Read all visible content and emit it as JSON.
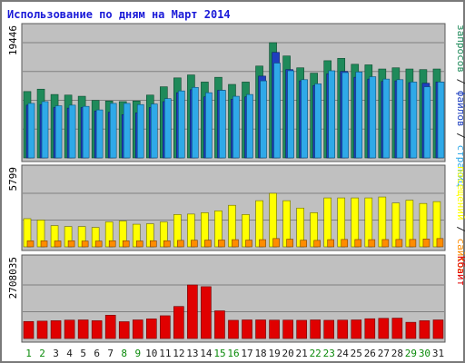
{
  "title": "Использование по дням на Март 2014",
  "colors": {
    "frame_border": "#7a7a7a",
    "panel_bg": "#c0c0c0",
    "gridline": "#808080",
    "title": "#1a1ad8",
    "requests": "#1f8a5a",
    "files": "#1e3fbf",
    "pages": "#2fa9e8",
    "sites": "#ff8c00",
    "visits": "#ffff00",
    "kbytes": "#e00000",
    "weekend_label": "#0a8a0a",
    "weekday_label": "#1c1c1c"
  },
  "chart_data": [
    {
      "type": "bar",
      "panel": "top",
      "ymax_label": "19446",
      "ylim": [
        0,
        19446
      ],
      "categories": [
        "1",
        "2",
        "3",
        "4",
        "5",
        "6",
        "7",
        "8",
        "9",
        "10",
        "11",
        "12",
        "13",
        "14",
        "15",
        "16",
        "17",
        "18",
        "19",
        "20",
        "21",
        "22",
        "23",
        "24",
        "25",
        "26",
        "27",
        "28",
        "29",
        "30",
        "31"
      ],
      "weekend_days": [
        "1",
        "2",
        "8",
        "9",
        "15",
        "16",
        "22",
        "23",
        "29",
        "30"
      ],
      "series": [
        {
          "name": "запросов",
          "values": [
            11200,
            11600,
            10700,
            10600,
            10400,
            9700,
            9600,
            9500,
            9600,
            10600,
            12000,
            13500,
            14000,
            12800,
            13600,
            12400,
            12800,
            15500,
            19446,
            17200,
            15200,
            14300,
            16400,
            16800,
            15800,
            15700,
            15000,
            15200,
            15000,
            14900,
            15000
          ]
        },
        {
          "name": "файлов",
          "values": [
            8900,
            9000,
            8500,
            8400,
            8500,
            7900,
            7700,
            7300,
            7600,
            8500,
            9500,
            11000,
            11500,
            10300,
            11400,
            9900,
            10300,
            13800,
            17800,
            14900,
            13000,
            12200,
            14200,
            14600,
            13600,
            13300,
            12900,
            13000,
            12700,
            12600,
            12800
          ]
        },
        {
          "name": "страниц",
          "values": [
            9200,
            9500,
            8800,
            8900,
            8700,
            8100,
            9200,
            9200,
            9000,
            9100,
            10000,
            11300,
            11900,
            11000,
            11400,
            10400,
            10700,
            13000,
            16000,
            14700,
            13200,
            12500,
            14700,
            14400,
            14500,
            13700,
            13300,
            13200,
            12800,
            12000,
            12800
          ]
        }
      ]
    },
    {
      "type": "bar",
      "panel": "middle",
      "ymax_label": "5799",
      "ylim": [
        0,
        5799
      ],
      "series": [
        {
          "name": "посещений",
          "values": [
            3050,
            2900,
            2300,
            2200,
            2200,
            2100,
            2700,
            2800,
            2450,
            2500,
            2700,
            3500,
            3550,
            3700,
            3900,
            4500,
            3500,
            5000,
            5799,
            5000,
            4200,
            3700,
            5300,
            5300,
            5300,
            5300,
            5400,
            4750,
            5050,
            4700,
            4900
          ]
        },
        {
          "name": "сайтов",
          "values": [
            650,
            650,
            640,
            660,
            630,
            630,
            660,
            660,
            640,
            660,
            660,
            700,
            720,
            730,
            740,
            780,
            730,
            780,
            900,
            830,
            720,
            700,
            780,
            800,
            790,
            780,
            790,
            800,
            800,
            850,
            900
          ]
        }
      ]
    },
    {
      "type": "bar",
      "panel": "bottom",
      "ymax_label": "2708035",
      "ylim": [
        0,
        2708035
      ],
      "series": [
        {
          "name": "Кбайт",
          "values": [
            860000,
            880000,
            900000,
            930000,
            940000,
            900000,
            1180000,
            850000,
            940000,
            990000,
            1150000,
            1620000,
            2708035,
            2620000,
            1400000,
            920000,
            940000,
            940000,
            930000,
            930000,
            920000,
            940000,
            920000,
            930000,
            940000,
            1000000,
            1020000,
            1030000,
            820000,
            900000,
            940000
          ]
        }
      ]
    }
  ],
  "legend_right": {
    "top": [
      {
        "text": "запросов",
        "color": "#1f8a5a"
      },
      {
        "text": " / ",
        "color": "#1c1c1c"
      },
      {
        "text": "файлов",
        "color": "#1e3fbf"
      },
      {
        "text": " / ",
        "color": "#1c1c1c"
      },
      {
        "text": "страниц",
        "color": "#2fa9e8"
      }
    ],
    "middle": [
      {
        "text": "посещений",
        "color": "#ffff00"
      },
      {
        "text": " / ",
        "color": "#1c1c1c"
      },
      {
        "text": "сайтов",
        "color": "#ff8c00"
      }
    ],
    "bottom": [
      {
        "text": "Кбайт",
        "color": "#e00000"
      }
    ]
  }
}
